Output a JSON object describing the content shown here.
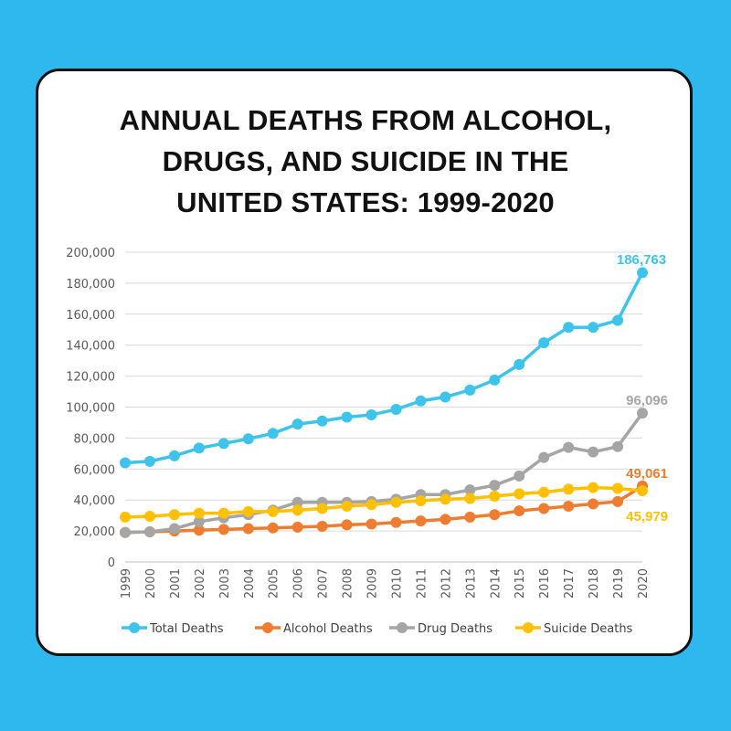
{
  "colors": {
    "background": "#2fb8ee",
    "card": "#ffffff",
    "total": "#3ec4ea",
    "alcohol": "#ee7d31",
    "drug": "#a5a5a5",
    "suicide": "#ffc000",
    "grid": "#d9d9d9"
  },
  "title_lines": [
    "ANNUAL DEATHS FROM ALCOHOL,",
    "DRUGS, AND SUICIDE IN THE",
    "UNITED STATES: 1999-2020"
  ],
  "chart_data": {
    "type": "line",
    "title": "ANNUAL DEATHS FROM ALCOHOL, DRUGS, AND SUICIDE IN THE UNITED STATES: 1999-2020",
    "xlabel": "",
    "ylabel": "",
    "categories": [
      "1999",
      "2000",
      "2001",
      "2002",
      "2003",
      "2004",
      "2005",
      "2006",
      "2007",
      "2008",
      "2009",
      "2010",
      "2011",
      "2012",
      "2013",
      "2014",
      "2015",
      "2016",
      "2017",
      "2018",
      "2019",
      "2020"
    ],
    "y_ticks": [
      "0",
      "20,000",
      "40,000",
      "60,000",
      "80,000",
      "100,000",
      "120,000",
      "140,000",
      "160,000",
      "180,000",
      "200,000"
    ],
    "ylim": [
      0,
      200000
    ],
    "grid": true,
    "legend_position": "bottom",
    "series": [
      {
        "name": "Total Deaths",
        "color": "#3ec4ea",
        "values": [
          64000,
          65000,
          68500,
          73500,
          76500,
          79500,
          83000,
          89000,
          91000,
          93500,
          95000,
          98500,
          104000,
          106500,
          111000,
          117500,
          127500,
          141500,
          151500,
          151500,
          156000,
          186763
        ],
        "end_label": "186,763"
      },
      {
        "name": "Alcohol Deaths",
        "color": "#ee7d31",
        "values": [
          19000,
          19500,
          20000,
          20500,
          21000,
          21500,
          22000,
          22500,
          23000,
          24000,
          24500,
          25500,
          26500,
          27500,
          29000,
          30500,
          33000,
          34500,
          36000,
          37500,
          39000,
          49061
        ],
        "end_label": "49,061"
      },
      {
        "name": "Drug Deaths",
        "color": "#a5a5a5",
        "values": [
          19000,
          19500,
          21500,
          26000,
          28500,
          30500,
          33500,
          38500,
          38500,
          38500,
          39000,
          40500,
          43500,
          43500,
          46500,
          49500,
          55500,
          67500,
          74000,
          71000,
          74500,
          96096
        ],
        "end_label": "96,096"
      },
      {
        "name": "Suicide Deaths",
        "color": "#ffc000",
        "values": [
          29000,
          29500,
          30500,
          31500,
          31500,
          32500,
          32500,
          33500,
          34500,
          36000,
          37000,
          38500,
          39500,
          40500,
          41000,
          42500,
          44000,
          45000,
          47000,
          48000,
          47500,
          45979
        ],
        "end_label": "45,979"
      }
    ]
  }
}
